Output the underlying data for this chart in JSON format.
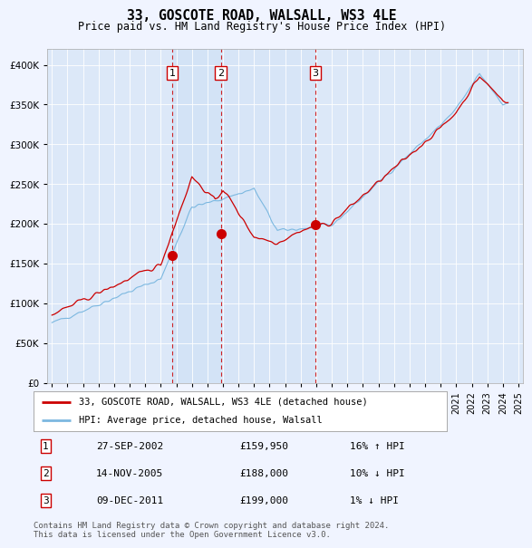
{
  "title": "33, GOSCOTE ROAD, WALSALL, WS3 4LE",
  "subtitle": "Price paid vs. HM Land Registry's House Price Index (HPI)",
  "background_color": "#f0f4ff",
  "plot_bg_color": "#dce8f8",
  "legend_label_red": "33, GOSCOTE ROAD, WALSALL, WS3 4LE (detached house)",
  "legend_label_blue": "HPI: Average price, detached house, Walsall",
  "footer": "Contains HM Land Registry data © Crown copyright and database right 2024.\nThis data is licensed under the Open Government Licence v3.0.",
  "sales": [
    {
      "num": 1,
      "date": "27-SEP-2002",
      "price": 159950,
      "pct": "16%",
      "dir": "↑",
      "x_year": 2002.74
    },
    {
      "num": 2,
      "date": "14-NOV-2005",
      "price": 188000,
      "pct": "10%",
      "dir": "↓",
      "x_year": 2005.87
    },
    {
      "num": 3,
      "date": "09-DEC-2011",
      "price": 199000,
      "pct": "1%",
      "dir": "↓",
      "x_year": 2011.94
    }
  ],
  "ylim": [
    0,
    420000
  ],
  "yticks": [
    0,
    50000,
    100000,
    150000,
    200000,
    250000,
    300000,
    350000,
    400000
  ],
  "xlim_start": 1994.7,
  "xlim_end": 2025.3,
  "xtick_years": [
    1995,
    1996,
    1997,
    1998,
    1999,
    2000,
    2001,
    2002,
    2003,
    2004,
    2005,
    2006,
    2007,
    2008,
    2009,
    2010,
    2011,
    2012,
    2013,
    2014,
    2015,
    2016,
    2017,
    2018,
    2019,
    2020,
    2021,
    2022,
    2023,
    2024,
    2025
  ]
}
